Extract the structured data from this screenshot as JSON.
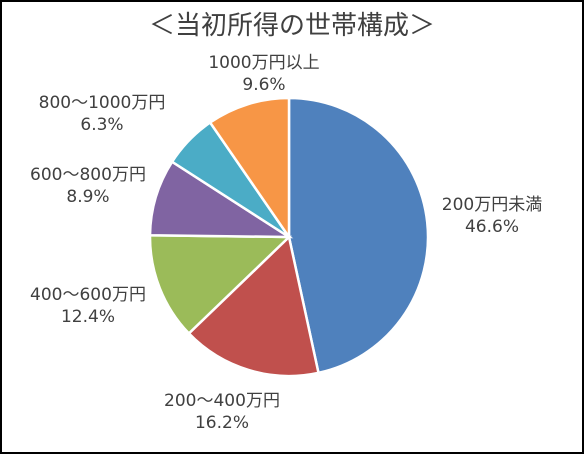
{
  "chart_data": {
    "type": "pie",
    "title": "＜当初所得の世帯構成＞",
    "slices": [
      {
        "label": "200万円未満",
        "value": 46.6,
        "value_label": "46.6%",
        "color": "#4f81bd"
      },
      {
        "label": "200～400万円",
        "value": 16.2,
        "value_label": "16.2%",
        "color": "#c0504d"
      },
      {
        "label": "400～600万円",
        "value": 12.4,
        "value_label": "12.4%",
        "color": "#9bbb59"
      },
      {
        "label": "600～800万円",
        "value": 8.9,
        "value_label": "8.9%",
        "color": "#8064a2"
      },
      {
        "label": "800～1000万円",
        "value": 6.3,
        "value_label": "6.3%",
        "color": "#4bacc6"
      },
      {
        "label": "1000万円以上",
        "value": 9.6,
        "value_label": "9.6%",
        "color": "#f79646"
      }
    ],
    "start": "12 o'clock",
    "direction": "clockwise",
    "legend": "none"
  }
}
